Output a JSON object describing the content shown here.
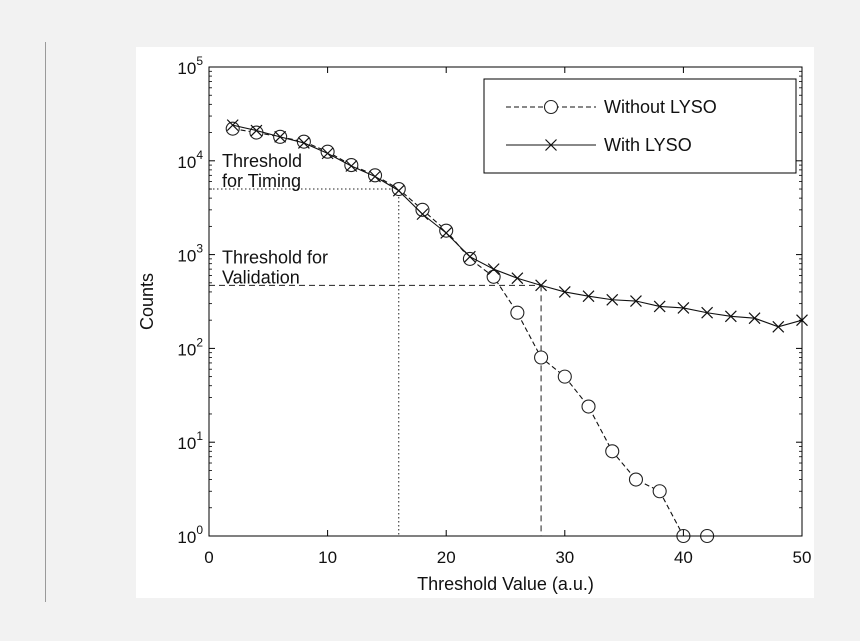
{
  "chart_data": {
    "type": "line",
    "title": "",
    "xlabel": "Threshold Value (a.u.)",
    "ylabel": "Counts",
    "xlim": [
      0,
      50
    ],
    "ylim_log10": [
      0,
      5
    ],
    "yscale": "log",
    "x_ticks": [
      0,
      10,
      20,
      30,
      40,
      50
    ],
    "x_tick_labels": [
      "0",
      "10",
      "20",
      "30",
      "40",
      "50"
    ],
    "y_ticks_log10": [
      0,
      1,
      2,
      3,
      4,
      5
    ],
    "y_tick_labels": [
      {
        "base": "10",
        "exp": "0"
      },
      {
        "base": "10",
        "exp": "1"
      },
      {
        "base": "10",
        "exp": "2"
      },
      {
        "base": "10",
        "exp": "3"
      },
      {
        "base": "10",
        "exp": "4"
      },
      {
        "base": "10",
        "exp": "5"
      }
    ],
    "legend_position": "top-right",
    "series": [
      {
        "name": "Without LYSO",
        "line": "dashed",
        "marker": "circle",
        "x": [
          2,
          4,
          6,
          8,
          10,
          12,
          14,
          16,
          18,
          20,
          22,
          24,
          26,
          28,
          30,
          32,
          34,
          36,
          38,
          40,
          42
        ],
        "y": [
          22000,
          20000,
          18000,
          16000,
          12500,
          9000,
          7000,
          5000,
          3000,
          1800,
          900,
          580,
          240,
          80,
          50,
          24,
          8,
          4,
          3,
          1,
          1
        ]
      },
      {
        "name": "With LYSO",
        "line": "solid",
        "marker": "x",
        "x": [
          2,
          4,
          6,
          8,
          10,
          12,
          14,
          16,
          18,
          20,
          22,
          24,
          26,
          28,
          30,
          32,
          34,
          36,
          38,
          40,
          42,
          44,
          46,
          48,
          50
        ],
        "y": [
          24000,
          21000,
          18000,
          15500,
          12000,
          8800,
          6800,
          4800,
          2700,
          1700,
          950,
          700,
          560,
          470,
          400,
          360,
          330,
          320,
          280,
          270,
          240,
          220,
          210,
          170,
          200
        ]
      }
    ],
    "annotations": [
      {
        "id": "timing",
        "line1": "Threshold",
        "line2": "for Timing",
        "x": 16,
        "y": 5000,
        "style": "dotted"
      },
      {
        "id": "validation",
        "line1": "Threshold for",
        "line2": "Validation",
        "x": 28,
        "y": 470,
        "style": "dashed"
      }
    ]
  }
}
